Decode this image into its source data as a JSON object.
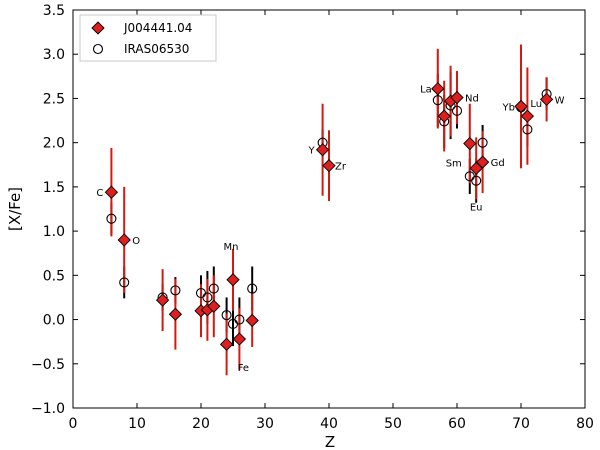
{
  "chart_data": {
    "type": "scatter",
    "xlabel": "Z",
    "ylabel": "[X/Fe]",
    "xlim": [
      0,
      80
    ],
    "ylim": [
      -1.0,
      3.5
    ],
    "xticks": [
      "0",
      "10",
      "20",
      "30",
      "40",
      "50",
      "60",
      "70",
      "80"
    ],
    "yticks": [
      "−1.0",
      "−0.5",
      "0.0",
      "0.5",
      "1.0",
      "1.5",
      "2.0",
      "2.5",
      "3.0",
      "3.5"
    ],
    "grid": false,
    "legend_position": "top-left",
    "series": [
      {
        "name": "J004441.04",
        "marker": "diamond",
        "color": "#dd1f1f",
        "errcolor": "#d41a0f",
        "points": [
          {
            "x": 6,
            "y": 1.44,
            "err": 0.5
          },
          {
            "x": 8,
            "y": 0.9,
            "err": 0.6
          },
          {
            "x": 14,
            "y": 0.22,
            "err": 0.35
          },
          {
            "x": 16,
            "y": 0.06,
            "err": 0.4
          },
          {
            "x": 20,
            "y": 0.1,
            "err": 0.3
          },
          {
            "x": 21,
            "y": 0.11,
            "err": 0.35
          },
          {
            "x": 22,
            "y": 0.15,
            "err": 0.35
          },
          {
            "x": 24,
            "y": -0.28,
            "err": 0.35
          },
          {
            "x": 25,
            "y": 0.45,
            "err": 0.35
          },
          {
            "x": 26,
            "y": -0.22,
            "err": 0.35
          },
          {
            "x": 28,
            "y": -0.01,
            "err": 0.3
          },
          {
            "x": 39,
            "y": 1.92,
            "err": 0.52
          },
          {
            "x": 40,
            "y": 1.74,
            "err": 0.4
          },
          {
            "x": 57,
            "y": 2.61,
            "err": 0.45
          },
          {
            "x": 58,
            "y": 2.3,
            "err": 0.4
          },
          {
            "x": 59,
            "y": 2.47,
            "err": 0.4
          },
          {
            "x": 60,
            "y": 2.51,
            "err": 0.3
          },
          {
            "x": 62,
            "y": 1.99,
            "err": 0.45
          },
          {
            "x": 63,
            "y": 1.71,
            "err": 0.35
          },
          {
            "x": 64,
            "y": 1.78,
            "err": 0.35
          },
          {
            "x": 70,
            "y": 2.41,
            "err": 0.7
          },
          {
            "x": 71,
            "y": 2.3,
            "err": 0.55
          },
          {
            "x": 74,
            "y": 2.49,
            "err": 0.25
          }
        ]
      },
      {
        "name": "IRAS06530",
        "marker": "circle",
        "color": "#000000",
        "errcolor": "#000000",
        "points": [
          {
            "x": 6,
            "y": 1.14,
            "err": 0.18
          },
          {
            "x": 8,
            "y": 0.42,
            "err": 0.18
          },
          {
            "x": 14,
            "y": 0.25,
            "err": 0.15
          },
          {
            "x": 16,
            "y": 0.33,
            "err": 0.15
          },
          {
            "x": 20,
            "y": 0.3,
            "err": 0.2
          },
          {
            "x": 21,
            "y": 0.25,
            "err": 0.3
          },
          {
            "x": 22,
            "y": 0.35,
            "err": 0.25
          },
          {
            "x": 24,
            "y": 0.05,
            "err": 0.2
          },
          {
            "x": 25,
            "y": -0.05,
            "err": 0.25
          },
          {
            "x": 26,
            "y": 0.0,
            "err": 0.25
          },
          {
            "x": 28,
            "y": 0.35,
            "err": 0.25
          },
          {
            "x": 39,
            "y": 2.0,
            "err": 0.15
          },
          {
            "x": 57,
            "y": 2.48,
            "err": 0.3
          },
          {
            "x": 58,
            "y": 2.24,
            "err": 0.3
          },
          {
            "x": 59,
            "y": 2.42,
            "err": 0.38
          },
          {
            "x": 60,
            "y": 2.36,
            "err": 0.2
          },
          {
            "x": 62,
            "y": 1.62,
            "err": 0.2
          },
          {
            "x": 63,
            "y": 1.57,
            "err": 0.25
          },
          {
            "x": 64,
            "y": 2.0,
            "err": 0.2
          },
          {
            "x": 70,
            "y": 2.4,
            "err": 0.2
          },
          {
            "x": 71,
            "y": 2.15,
            "err": 0.2
          },
          {
            "x": 74,
            "y": 2.55,
            "err": 0.18
          }
        ]
      }
    ],
    "annotations": [
      {
        "text": "C",
        "x": 6,
        "y": 1.44,
        "anchor": "end",
        "dx": -8,
        "dy": 4
      },
      {
        "text": "O",
        "x": 8,
        "y": 0.9,
        "anchor": "start",
        "dx": 8,
        "dy": 4
      },
      {
        "text": "Mn",
        "x": 25,
        "y": 0.45,
        "anchor": "middle",
        "dx": -2,
        "dy": -30
      },
      {
        "text": "Fe",
        "x": 26,
        "y": -0.22,
        "anchor": "middle",
        "dx": 4,
        "dy": 32
      },
      {
        "text": "Y",
        "x": 39,
        "y": 1.92,
        "anchor": "end",
        "dx": -8,
        "dy": 4
      },
      {
        "text": "Zr",
        "x": 40,
        "y": 1.74,
        "anchor": "start",
        "dx": 6,
        "dy": 4
      },
      {
        "text": "La",
        "x": 57,
        "y": 2.61,
        "anchor": "end",
        "dx": -6,
        "dy": 4
      },
      {
        "text": "Nd",
        "x": 60,
        "y": 2.51,
        "anchor": "start",
        "dx": 8,
        "dy": 4
      },
      {
        "text": "Sm",
        "x": 62,
        "y": 1.99,
        "anchor": "end",
        "dx": -8,
        "dy": 23
      },
      {
        "text": "Gd",
        "x": 64,
        "y": 1.78,
        "anchor": "start",
        "dx": 8,
        "dy": 4
      },
      {
        "text": "Eu",
        "x": 63,
        "y": 1.71,
        "anchor": "middle",
        "dx": 0,
        "dy": 42
      },
      {
        "text": "Yb",
        "x": 70,
        "y": 2.41,
        "anchor": "end",
        "dx": -6,
        "dy": 4
      },
      {
        "text": "Lu",
        "x": 71,
        "y": 2.3,
        "anchor": "start",
        "dx": 3,
        "dy": -9
      },
      {
        "text": "W",
        "x": 74,
        "y": 2.49,
        "anchor": "start",
        "dx": 8,
        "dy": 4
      }
    ]
  }
}
